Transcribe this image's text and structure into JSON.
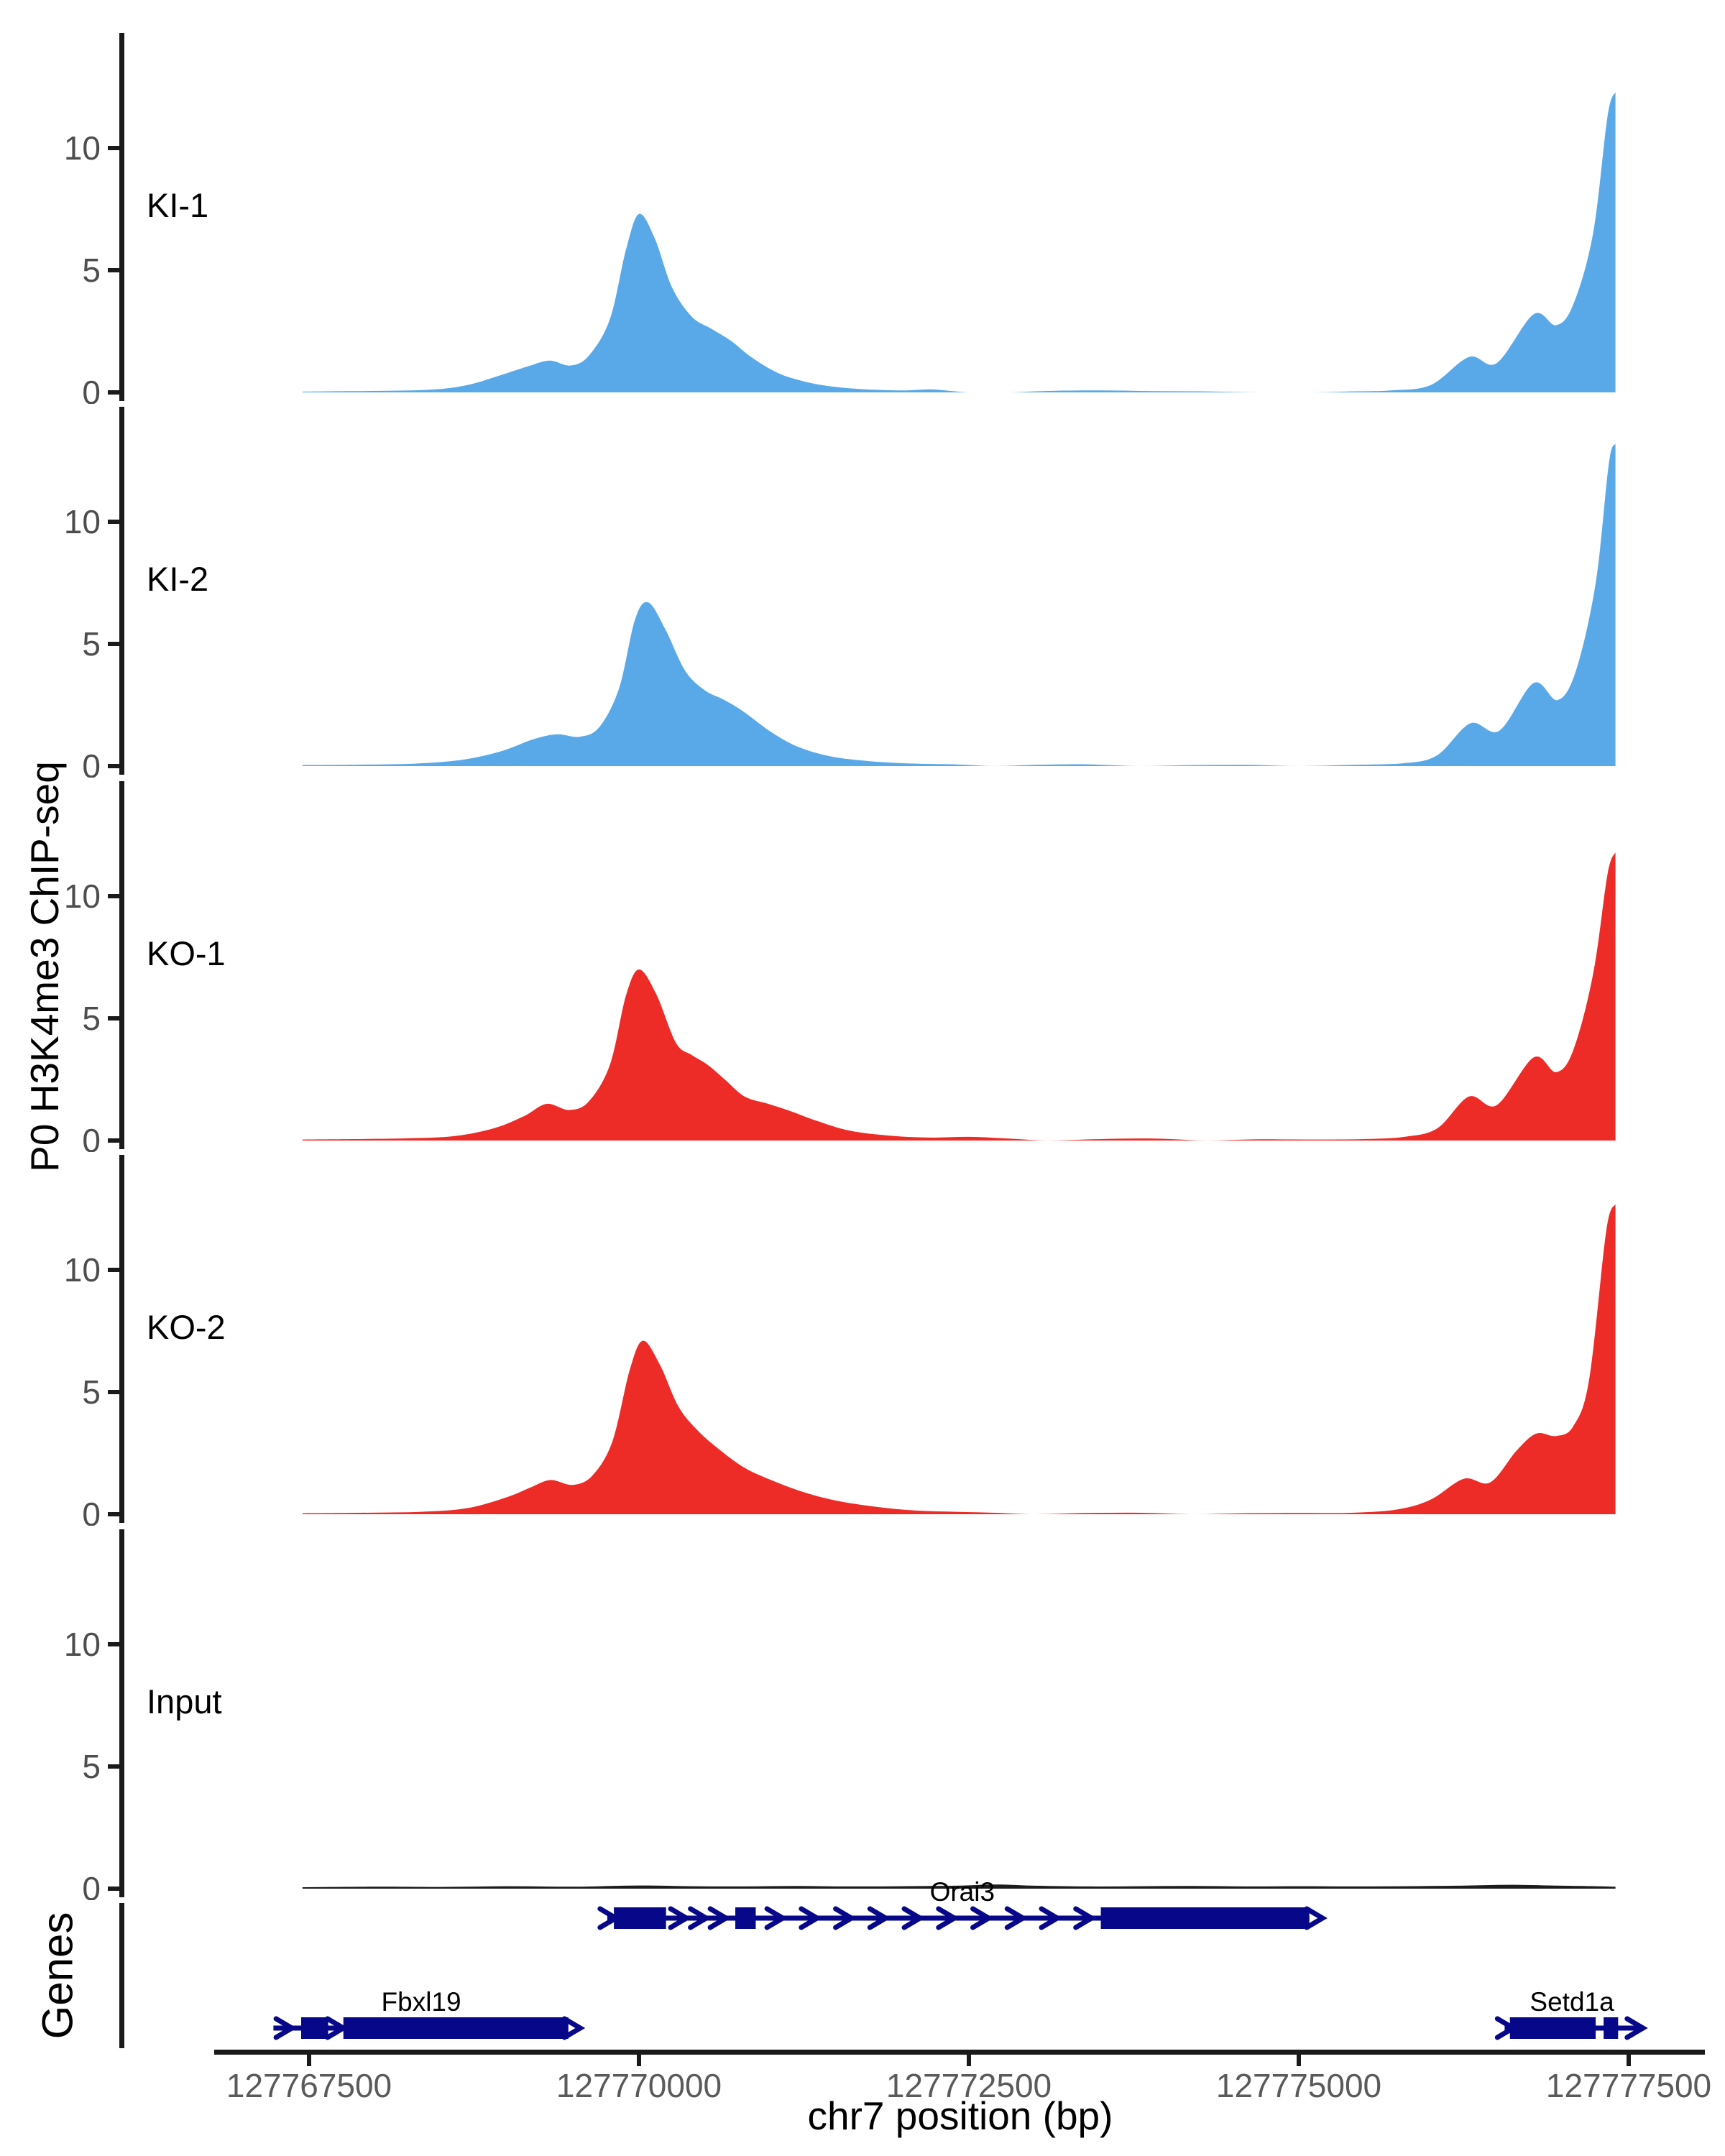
{
  "labels": {
    "y_axis_title": "P0 H3K4me3 ChIP-seq",
    "genes_title": "Genes",
    "x_axis_title": "chr7 position (bp)"
  },
  "style": {
    "background": "#ffffff",
    "blue": "#59A9E8",
    "red": "#ED2B27",
    "input_dark": "#1c1c1c",
    "gene_navy": "#07078A",
    "axis_black": "#1a1a1a",
    "y_tick_text": "#4d4d4d",
    "x_tick_text": "#5a5a5a",
    "track_label_text": "#000000",
    "gene_label_text": "#000000"
  },
  "chart_data": {
    "type": "area",
    "title": "",
    "xlabel": "chr7 position (bp)",
    "ylabel": "P0 H3K4me3 ChIP-seq",
    "chromosome": "chr7",
    "x_domain": [
      127766100,
      127778200
    ],
    "x_data_range": [
      127767450,
      127777400
    ],
    "x_ticks": [
      {
        "value": 127767500,
        "label": "127767500"
      },
      {
        "value": 127770000,
        "label": "127770000"
      },
      {
        "value": 127772500,
        "label": "127772500"
      },
      {
        "value": 127775000,
        "label": "127775000"
      },
      {
        "value": 127777500,
        "label": "127777500"
      }
    ],
    "y_ticks": [
      {
        "value": 0,
        "label": "0"
      },
      {
        "value": 5,
        "label": "5"
      },
      {
        "value": 10,
        "label": "10"
      }
    ],
    "y_axis_max": 13.8,
    "grid": false,
    "legend_position": "none",
    "tracks": [
      {
        "name": "KI-1",
        "color_key": "blue",
        "points": [
          [
            127767450,
            0.03
          ],
          [
            127767800,
            0.05
          ],
          [
            127768150,
            0.07
          ],
          [
            127768450,
            0.12
          ],
          [
            127768700,
            0.3
          ],
          [
            127768950,
            0.7
          ],
          [
            127769150,
            1.05
          ],
          [
            127769320,
            1.3
          ],
          [
            127769480,
            1.1
          ],
          [
            127769620,
            1.5
          ],
          [
            127769780,
            3.0
          ],
          [
            127769900,
            5.8
          ],
          [
            127770000,
            7.3
          ],
          [
            127770120,
            6.3
          ],
          [
            127770250,
            4.3
          ],
          [
            127770400,
            3.1
          ],
          [
            127770550,
            2.6
          ],
          [
            127770700,
            2.1
          ],
          [
            127770850,
            1.45
          ],
          [
            127771050,
            0.8
          ],
          [
            127771250,
            0.45
          ],
          [
            127771450,
            0.25
          ],
          [
            127771700,
            0.13
          ],
          [
            127772000,
            0.08
          ],
          [
            127772220,
            0.12
          ],
          [
            127772500,
            0
          ],
          [
            127772800,
            0
          ],
          [
            127773100,
            0.06
          ],
          [
            127773500,
            0.08
          ],
          [
            127773900,
            0.05
          ],
          [
            127774300,
            0.04
          ],
          [
            127774700,
            0
          ],
          [
            127775100,
            0
          ],
          [
            127775400,
            0.04
          ],
          [
            127775700,
            0.08
          ],
          [
            127776000,
            0.3
          ],
          [
            127776290,
            1.45
          ],
          [
            127776500,
            1.2
          ],
          [
            127776780,
            3.2
          ],
          [
            127776950,
            2.75
          ],
          [
            127777080,
            3.6
          ],
          [
            127777230,
            6.5
          ],
          [
            127777340,
            11.3
          ],
          [
            127777400,
            12.3
          ]
        ]
      },
      {
        "name": "KI-2",
        "color_key": "blue",
        "points": [
          [
            127767450,
            0.04
          ],
          [
            127767900,
            0.06
          ],
          [
            127768300,
            0.1
          ],
          [
            127768650,
            0.25
          ],
          [
            127768950,
            0.6
          ],
          [
            127769200,
            1.1
          ],
          [
            127769380,
            1.3
          ],
          [
            127769550,
            1.2
          ],
          [
            127769700,
            1.6
          ],
          [
            127769850,
            3.2
          ],
          [
            127769970,
            6.0
          ],
          [
            127770070,
            6.7
          ],
          [
            127770200,
            5.6
          ],
          [
            127770350,
            3.9
          ],
          [
            127770500,
            3.1
          ],
          [
            127770650,
            2.7
          ],
          [
            127770800,
            2.2
          ],
          [
            127771000,
            1.4
          ],
          [
            127771200,
            0.8
          ],
          [
            127771450,
            0.4
          ],
          [
            127771750,
            0.2
          ],
          [
            127772100,
            0.1
          ],
          [
            127772400,
            0.07
          ],
          [
            127772700,
            0
          ],
          [
            127773000,
            0.05
          ],
          [
            127773400,
            0.07
          ],
          [
            127773800,
            0
          ],
          [
            127774200,
            0.04
          ],
          [
            127774600,
            0.05
          ],
          [
            127775000,
            0
          ],
          [
            127775400,
            0.05
          ],
          [
            127775800,
            0.12
          ],
          [
            127776050,
            0.45
          ],
          [
            127776300,
            1.75
          ],
          [
            127776520,
            1.45
          ],
          [
            127776780,
            3.4
          ],
          [
            127776960,
            2.7
          ],
          [
            127777100,
            3.9
          ],
          [
            127777250,
            7.5
          ],
          [
            127777350,
            12.4
          ],
          [
            127777400,
            13.2
          ]
        ]
      },
      {
        "name": "KO-1",
        "color_key": "red",
        "points": [
          [
            127767450,
            0.04
          ],
          [
            127767850,
            0.06
          ],
          [
            127768250,
            0.09
          ],
          [
            127768600,
            0.18
          ],
          [
            127768900,
            0.5
          ],
          [
            127769130,
            1.0
          ],
          [
            127769300,
            1.5
          ],
          [
            127769470,
            1.25
          ],
          [
            127769620,
            1.6
          ],
          [
            127769780,
            3.1
          ],
          [
            127769900,
            5.9
          ],
          [
            127770000,
            7.0
          ],
          [
            127770130,
            6.0
          ],
          [
            127770280,
            4.0
          ],
          [
            127770400,
            3.5
          ],
          [
            127770520,
            3.1
          ],
          [
            127770650,
            2.5
          ],
          [
            127770800,
            1.8
          ],
          [
            127770980,
            1.5
          ],
          [
            127771150,
            1.2
          ],
          [
            127771350,
            0.8
          ],
          [
            127771600,
            0.4
          ],
          [
            127771900,
            0.2
          ],
          [
            127772200,
            0.12
          ],
          [
            127772500,
            0.15
          ],
          [
            127772800,
            0.08
          ],
          [
            127773100,
            0
          ],
          [
            127773500,
            0.06
          ],
          [
            127773900,
            0.08
          ],
          [
            127774300,
            0
          ],
          [
            127774700,
            0.05
          ],
          [
            127775100,
            0.04
          ],
          [
            127775500,
            0.06
          ],
          [
            127775800,
            0.15
          ],
          [
            127776050,
            0.5
          ],
          [
            127776290,
            1.8
          ],
          [
            127776500,
            1.45
          ],
          [
            127776780,
            3.4
          ],
          [
            127776950,
            2.8
          ],
          [
            127777080,
            3.7
          ],
          [
            127777230,
            6.8
          ],
          [
            127777340,
            10.9
          ],
          [
            127777400,
            11.8
          ]
        ]
      },
      {
        "name": "KO-2",
        "color_key": "red",
        "points": [
          [
            127767450,
            0.04
          ],
          [
            127767900,
            0.06
          ],
          [
            127768350,
            0.1
          ],
          [
            127768700,
            0.25
          ],
          [
            127769000,
            0.7
          ],
          [
            127769180,
            1.1
          ],
          [
            127769330,
            1.4
          ],
          [
            127769500,
            1.2
          ],
          [
            127769650,
            1.6
          ],
          [
            127769800,
            3.0
          ],
          [
            127769930,
            5.9
          ],
          [
            127770030,
            7.1
          ],
          [
            127770160,
            6.1
          ],
          [
            127770300,
            4.4
          ],
          [
            127770450,
            3.4
          ],
          [
            127770620,
            2.6
          ],
          [
            127770800,
            1.9
          ],
          [
            127771000,
            1.4
          ],
          [
            127771250,
            0.9
          ],
          [
            127771500,
            0.55
          ],
          [
            127771800,
            0.3
          ],
          [
            127772100,
            0.15
          ],
          [
            127772400,
            0.1
          ],
          [
            127772700,
            0.06
          ],
          [
            127773000,
            0
          ],
          [
            127773400,
            0.05
          ],
          [
            127773800,
            0.06
          ],
          [
            127774200,
            0
          ],
          [
            127774600,
            0.04
          ],
          [
            127775000,
            0.05
          ],
          [
            127775400,
            0.06
          ],
          [
            127775750,
            0.2
          ],
          [
            127776000,
            0.6
          ],
          [
            127776250,
            1.45
          ],
          [
            127776450,
            1.3
          ],
          [
            127776650,
            2.6
          ],
          [
            127776800,
            3.3
          ],
          [
            127776950,
            3.2
          ],
          [
            127777080,
            3.6
          ],
          [
            127777200,
            5.5
          ],
          [
            127777330,
            11.6
          ],
          [
            127777400,
            12.7
          ]
        ]
      },
      {
        "name": "Input",
        "color_key": "input_dark",
        "points": [
          [
            127767450,
            0.06
          ],
          [
            127768000,
            0.08
          ],
          [
            127768500,
            0.07
          ],
          [
            127769000,
            0.1
          ],
          [
            127769500,
            0.08
          ],
          [
            127770000,
            0.13
          ],
          [
            127770400,
            0.1
          ],
          [
            127770800,
            0.09
          ],
          [
            127771200,
            0.11
          ],
          [
            127771600,
            0.09
          ],
          [
            127772000,
            0.1
          ],
          [
            127772400,
            0.12
          ],
          [
            127772700,
            0.17
          ],
          [
            127773000,
            0.12
          ],
          [
            127773400,
            0.09
          ],
          [
            127773800,
            0.1
          ],
          [
            127774200,
            0.11
          ],
          [
            127774600,
            0.09
          ],
          [
            127775000,
            0.1
          ],
          [
            127775400,
            0.09
          ],
          [
            127775800,
            0.1
          ],
          [
            127776200,
            0.12
          ],
          [
            127776600,
            0.16
          ],
          [
            127777000,
            0.12
          ],
          [
            127777250,
            0.1
          ],
          [
            127777400,
            0.08
          ]
        ]
      }
    ],
    "genes": [
      {
        "name": "Orai3",
        "row": 0,
        "strand": "+",
        "label_bp": 127772450,
        "line": [
          127769760,
          127775080
        ],
        "exons": [
          [
            127769810,
            127770205
          ],
          [
            127770730,
            127770885
          ],
          [
            127773500,
            127775080
          ]
        ],
        "chevrons": [
          127769765,
          127770300,
          127770450,
          127770600,
          127771030,
          127771290,
          127771550,
          127771810,
          127772070,
          127772330,
          127772590,
          127772850,
          127773110,
          127773370,
          127775120
        ]
      },
      {
        "name": "Fbxl19",
        "row": 1,
        "strand": "+",
        "label_bp": 127768350,
        "line": [
          127767230,
          127767800
        ],
        "exons": [
          [
            127767440,
            127767645
          ],
          [
            127767760,
            127769465
          ]
        ],
        "chevrons": [
          127767310,
          127767700,
          127769495
        ]
      },
      {
        "name": "Setd1a",
        "row": 1,
        "strand": "+",
        "label_bp": 127777070,
        "line": [
          127776560,
          127777580
        ],
        "exons": [
          [
            127776600,
            127777250
          ],
          [
            127777310,
            127777420
          ]
        ],
        "chevrons": [
          127776565,
          127777548
        ]
      }
    ]
  }
}
